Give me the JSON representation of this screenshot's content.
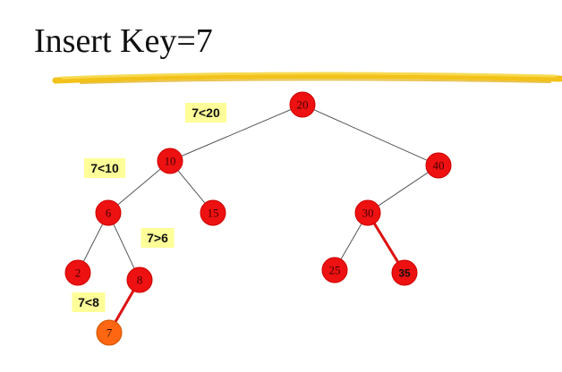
{
  "title": "Insert Key=7",
  "colors": {
    "node": "#ee1111",
    "new_node": "#ff6611",
    "highlight_edge": "#dd1111",
    "edge": "#555555",
    "comparison_bg": "#ffff99",
    "underline": "#f2c21a"
  },
  "nodes": [
    {
      "key": "20",
      "color": "red"
    },
    {
      "key": "10",
      "color": "red"
    },
    {
      "key": "40",
      "color": "red"
    },
    {
      "key": "6",
      "color": "red"
    },
    {
      "key": "15",
      "color": "red"
    },
    {
      "key": "30",
      "color": "red"
    },
    {
      "key": "2",
      "color": "red"
    },
    {
      "key": "8",
      "color": "red"
    },
    {
      "key": "25",
      "color": "red"
    },
    {
      "key": "35",
      "color": "red"
    },
    {
      "key": "7",
      "color": "new"
    }
  ],
  "edges": [
    {
      "from": "20",
      "to": "10",
      "highlight": false
    },
    {
      "from": "20",
      "to": "40",
      "highlight": false
    },
    {
      "from": "10",
      "to": "6",
      "highlight": false
    },
    {
      "from": "10",
      "to": "15",
      "highlight": false
    },
    {
      "from": "40",
      "to": "30",
      "highlight": false
    },
    {
      "from": "6",
      "to": "2",
      "highlight": false
    },
    {
      "from": "6",
      "to": "8",
      "highlight": false
    },
    {
      "from": "30",
      "to": "25",
      "highlight": false
    },
    {
      "from": "30",
      "to": "35",
      "highlight": true
    },
    {
      "from": "8",
      "to": "7",
      "highlight": true
    }
  ],
  "comparisons": [
    "7<20",
    "7<10",
    "7>6",
    "7<8"
  ]
}
